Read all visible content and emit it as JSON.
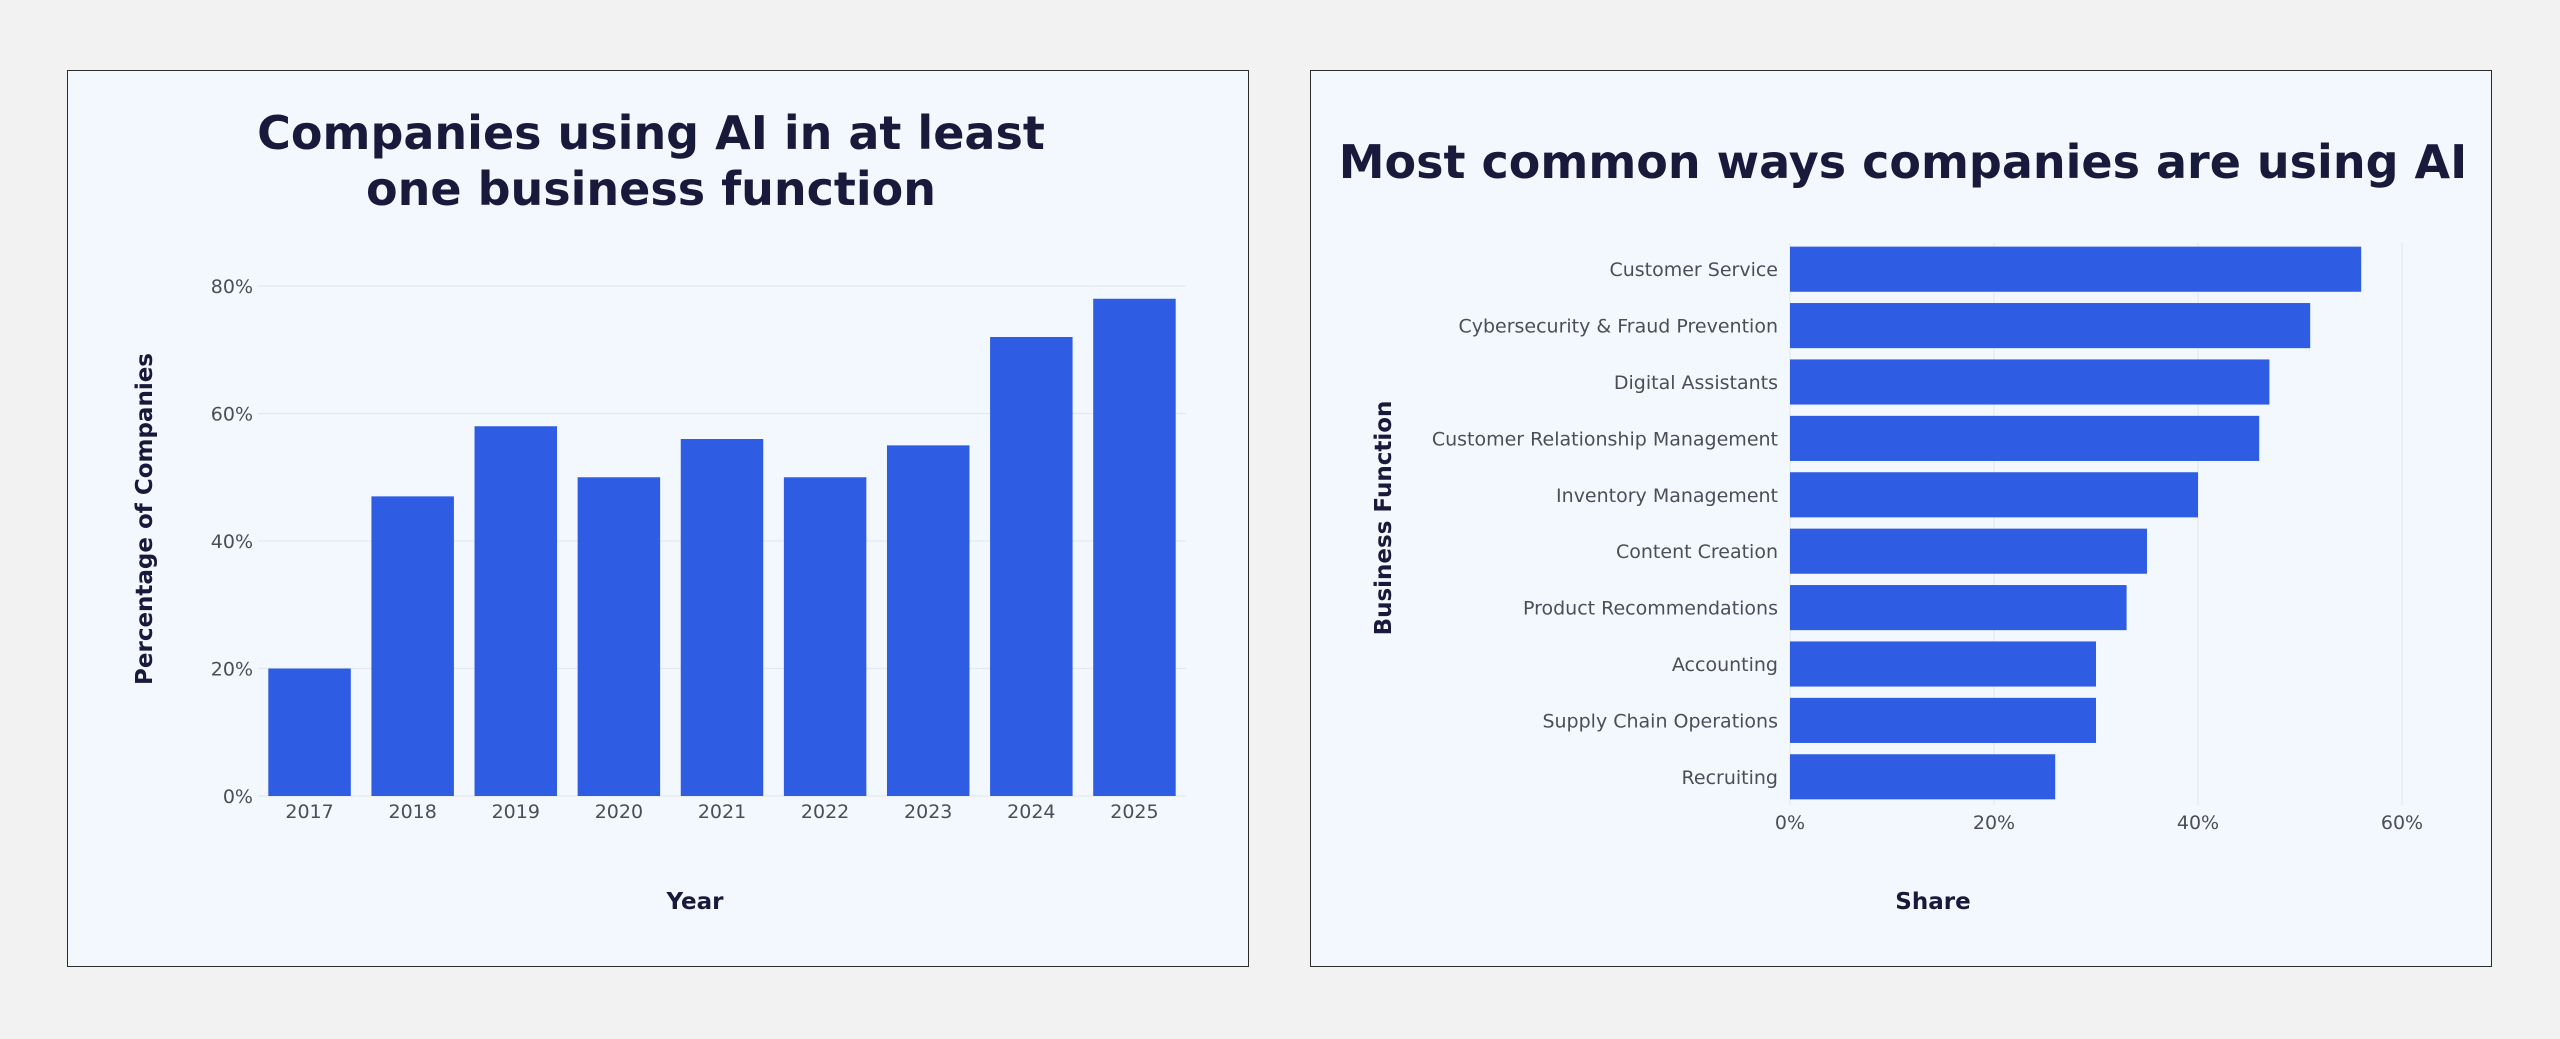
{
  "chart_data": [
    {
      "type": "bar",
      "orientation": "vertical",
      "title": [
        "Companies using AI in at least",
        "one business function"
      ],
      "xlabel": "Year",
      "ylabel": "Percentage of Companies",
      "categories": [
        "2017",
        "2018",
        "2019",
        "2020",
        "2021",
        "2022",
        "2023",
        "2024",
        "2025"
      ],
      "values": [
        20,
        47,
        58,
        50,
        56,
        50,
        55,
        72,
        78
      ],
      "ylim": [
        0,
        80
      ],
      "yticks": [
        "0%",
        "20%",
        "40%",
        "60%",
        "80%"
      ],
      "grid": true,
      "color": "#2e5de3"
    },
    {
      "type": "bar",
      "orientation": "horizontal",
      "title": [
        "Most common ways companies are using AI"
      ],
      "xlabel": "Share",
      "ylabel": "Business Function",
      "categories": [
        "Customer Service",
        "Cybersecurity & Fraud Prevention",
        "Digital Assistants",
        "Customer Relationship Management",
        "Inventory Management",
        "Content Creation",
        "Product Recommendations",
        "Accounting",
        "Supply Chain Operations",
        "Recruiting"
      ],
      "values": [
        56,
        51,
        47,
        46,
        40,
        35,
        33,
        30,
        30,
        26
      ],
      "xlim": [
        0,
        60
      ],
      "xticks": [
        "0%",
        "20%",
        "40%",
        "60%"
      ],
      "grid": true,
      "color": "#2e5de3"
    }
  ]
}
